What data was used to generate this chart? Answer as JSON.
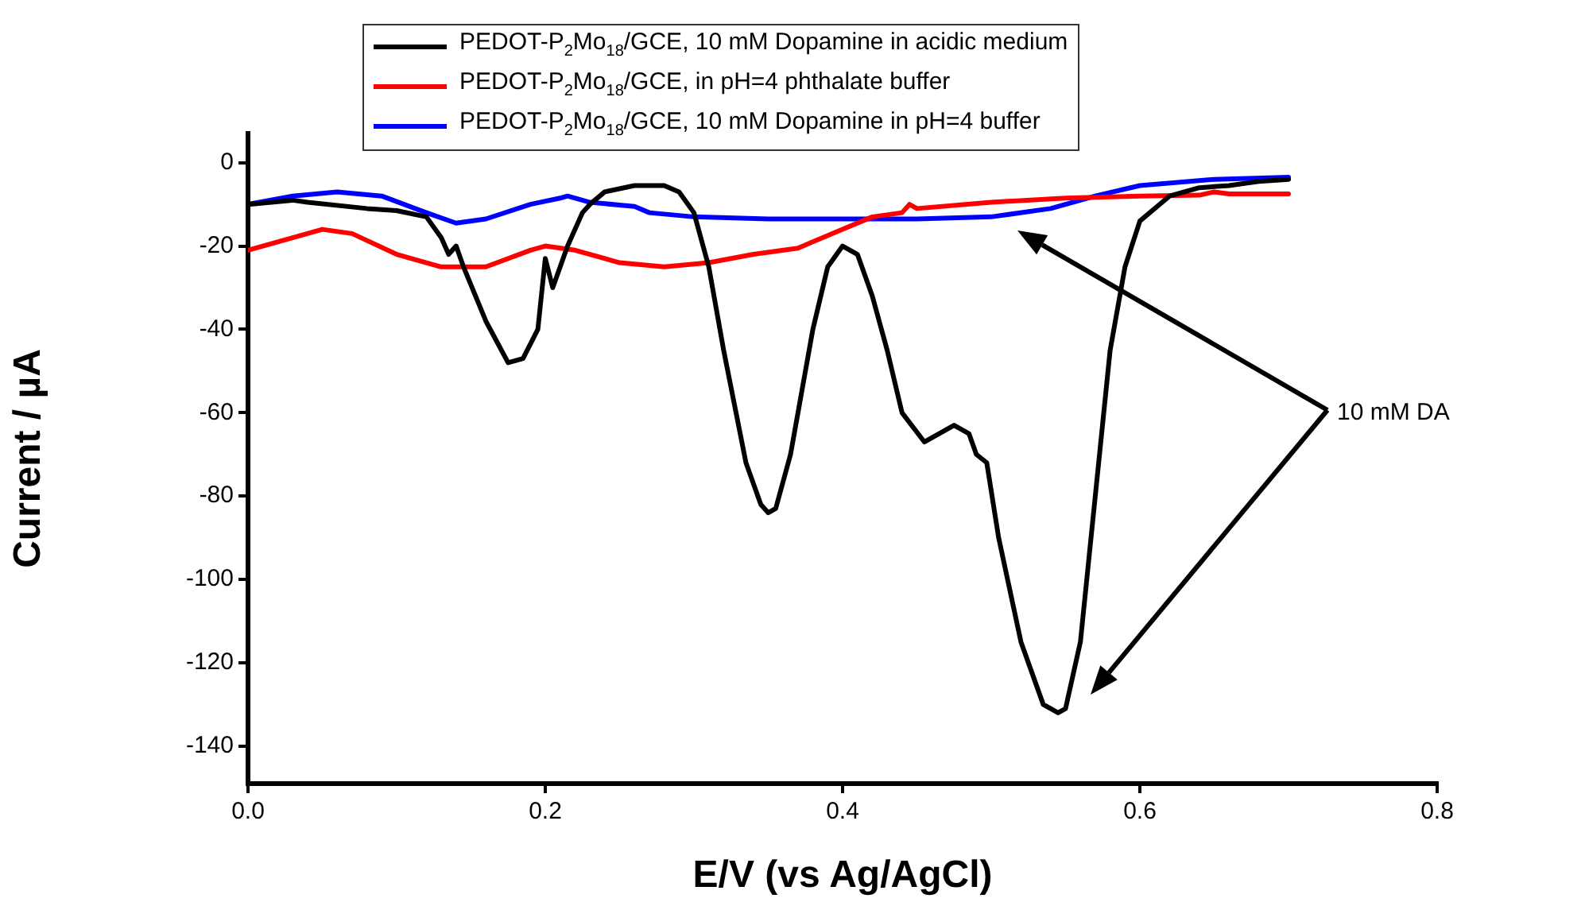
{
  "chart_data": {
    "type": "line",
    "xlabel": "E/V (vs Ag/AgCl)",
    "ylabel": "Current / µA",
    "xlim": [
      0,
      0.8
    ],
    "xticks": [
      {
        "value": 0,
        "label": "0.0"
      },
      {
        "value": 0.2,
        "label": "0.2"
      },
      {
        "value": 0.4,
        "label": "0.4"
      },
      {
        "value": 0.6,
        "label": "0.6"
      },
      {
        "value": 0.8,
        "label": "0.8"
      }
    ],
    "ylim": [
      -149,
      7
    ],
    "yticks": [
      -140,
      -120,
      -100,
      -80,
      -60,
      -40,
      -20,
      0
    ],
    "grid": false,
    "legend": "top",
    "marker": "none",
    "line_style": "solid",
    "annotations": [
      "10 mM DA"
    ],
    "series": [
      {
        "name": "PEDOT-P$_{2}$Mo$_{18}$/GCE, 10 mM Dopamine in acidic medium",
        "color": "#000000",
        "x": [
          0,
          0.03,
          0.04,
          0.08,
          0.1,
          0.12,
          0.13,
          0.135,
          0.14,
          0.145,
          0.16,
          0.175,
          0.185,
          0.195,
          0.2,
          0.205,
          0.215,
          0.225,
          0.23,
          0.24,
          0.26,
          0.28,
          0.29,
          0.3,
          0.31,
          0.32,
          0.335,
          0.345,
          0.35,
          0.355,
          0.365,
          0.38,
          0.39,
          0.4,
          0.41,
          0.42,
          0.43,
          0.44,
          0.455,
          0.465,
          0.475,
          0.485,
          0.49,
          0.497,
          0.505,
          0.52,
          0.535,
          0.545,
          0.55,
          0.56,
          0.57,
          0.58,
          0.59,
          0.6,
          0.62,
          0.64,
          0.66,
          0.68,
          0.7
        ],
        "values": [
          -10,
          -9,
          -9.5,
          -11,
          -11.5,
          -13,
          -18,
          -22,
          -20,
          -25,
          -38,
          -48,
          -47,
          -40,
          -23,
          -30,
          -20,
          -12,
          -10,
          -7,
          -5.5,
          -5.5,
          -7,
          -12,
          -25,
          -45,
          -72,
          -82,
          -84,
          -83,
          -70,
          -40,
          -25,
          -20,
          -22,
          -32,
          -45,
          -60,
          -67,
          -65,
          -63,
          -65,
          -70,
          -72,
          -90,
          -115,
          -130,
          -132,
          -131,
          -115,
          -80,
          -45,
          -25,
          -14,
          -8,
          -6,
          -5.5,
          -4.5,
          -4
        ]
      },
      {
        "name": "PEDOT-P$_{2}$Mo$_{18}$/GCE, in pH=4 phthalate buffer",
        "color": "#ff0000",
        "x": [
          0,
          0.05,
          0.07,
          0.1,
          0.13,
          0.16,
          0.19,
          0.2,
          0.22,
          0.25,
          0.28,
          0.31,
          0.34,
          0.37,
          0.4,
          0.42,
          0.44,
          0.445,
          0.45,
          0.5,
          0.55,
          0.6,
          0.64,
          0.65,
          0.66,
          0.7
        ],
        "values": [
          -21,
          -16,
          -17,
          -22,
          -25,
          -25,
          -21,
          -20,
          -21,
          -24,
          -25,
          -24,
          -22,
          -20.5,
          -16,
          -13,
          -12,
          -10,
          -11,
          -9.5,
          -8.5,
          -8,
          -7.8,
          -7,
          -7.5,
          -7.5
        ]
      },
      {
        "name": "PEDOT-P$_{2}$Mo$_{18}$/GCE, 10 mM Dopamine in pH=4 buffer",
        "color": "#0000ff",
        "x": [
          0,
          0.03,
          0.06,
          0.09,
          0.12,
          0.14,
          0.16,
          0.19,
          0.21,
          0.215,
          0.23,
          0.26,
          0.27,
          0.3,
          0.35,
          0.4,
          0.45,
          0.5,
          0.54,
          0.57,
          0.6,
          0.65,
          0.7
        ],
        "values": [
          -10,
          -8,
          -7,
          -8,
          -12,
          -14.5,
          -13.5,
          -10,
          -8.5,
          -8,
          -9.5,
          -10.5,
          -12,
          -13,
          -13.5,
          -13.5,
          -13.5,
          -13,
          -11,
          -8,
          -5.5,
          -4,
          -3.5
        ]
      }
    ]
  }
}
